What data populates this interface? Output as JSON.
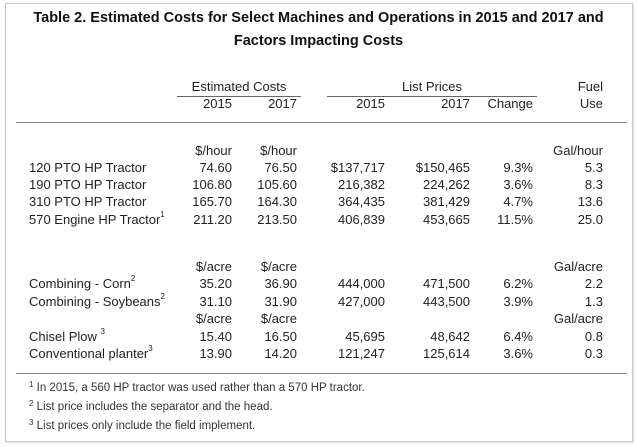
{
  "title": {
    "line1": "Table 2.  Estimated Costs for Select Machines and Operations in 2015 and 2017 and",
    "line2": "Factors Impacting Costs"
  },
  "headers": {
    "estimated_costs": "Estimated Costs",
    "list_prices": "List Prices",
    "fuel": "Fuel",
    "use": "Use",
    "y2015": "2015",
    "y2017": "2017",
    "change": "Change"
  },
  "units": {
    "hour": "$/hour",
    "acre": "$/acre",
    "gal_hour": "Gal/hour",
    "gal_acre": "Gal/acre"
  },
  "rows": [
    {
      "label": "120 PTO HP Tractor",
      "sup": "",
      "e2015": "74.60",
      "e2017": "76.50",
      "l2015": "$137,717",
      "l2017": "$150,465",
      "change": "9.3%",
      "fuel": "5.3"
    },
    {
      "label": "190 PTO HP Tractor",
      "sup": "",
      "e2015": "106.80",
      "e2017": "105.60",
      "l2015": "216,382",
      "l2017": "224,262",
      "change": "3.6%",
      "fuel": "8.3"
    },
    {
      "label": "310 PTO HP Tractor",
      "sup": "",
      "e2015": "165.70",
      "e2017": "164.30",
      "l2015": "364,435",
      "l2017": "381,429",
      "change": "4.7%",
      "fuel": "13.6"
    },
    {
      "label": "570 Engine HP Tractor",
      "sup": "1",
      "e2015": "211.20",
      "e2017": "213.50",
      "l2015": "406,839",
      "l2017": "453,665",
      "change": "11.5%",
      "fuel": "25.0"
    },
    {
      "label": "Combining - Corn",
      "sup": "2",
      "e2015": "35.20",
      "e2017": "36.90",
      "l2015": "444,000",
      "l2017": "471,500",
      "change": "6.2%",
      "fuel": "2.2"
    },
    {
      "label": "Combining - Soybeans",
      "sup": "2",
      "e2015": "31.10",
      "e2017": "31.90",
      "l2015": "427,000",
      "l2017": "443,500",
      "change": "3.9%",
      "fuel": "1.3"
    },
    {
      "label": "Chisel Plow ",
      "sup": "3",
      "e2015": "15.40",
      "e2017": "16.50",
      "l2015": "45,695",
      "l2017": "48,642",
      "change": "6.4%",
      "fuel": "0.8"
    },
    {
      "label": "Conventional planter",
      "sup": "3",
      "e2015": "13.90",
      "e2017": "14.20",
      "l2015": "121,247",
      "l2017": "125,614",
      "change": "3.6%",
      "fuel": "0.3"
    }
  ],
  "footnotes": [
    {
      "sup": "1",
      "text": " In 2015, a 560 HP tractor was used rather than a 570 HP tractor."
    },
    {
      "sup": "2",
      "text": " List price includes the separator and the head."
    },
    {
      "sup": "3",
      "text": " List prices only include the field implement."
    }
  ]
}
